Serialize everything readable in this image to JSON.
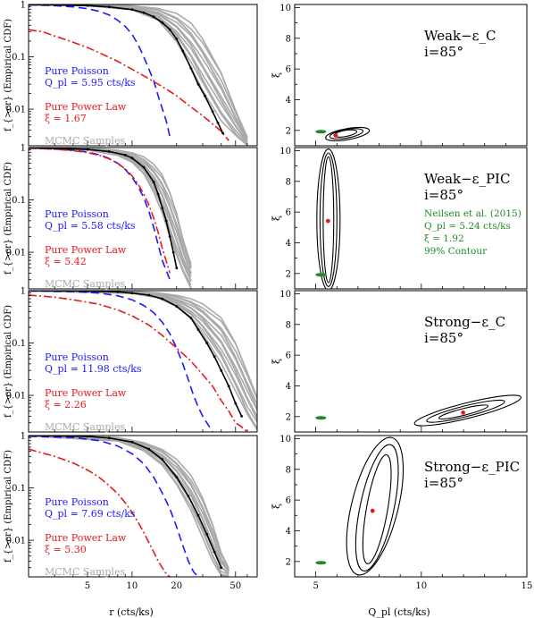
{
  "figure": {
    "left_ylabel": "f_{>cr} (Empirical CDF)",
    "left_xlabel": "r (cts/ks)",
    "right_ylabel": "ξ",
    "right_xlabel": "Q_pl (cts/ks)",
    "legend_labels": {
      "poisson": "Pure Poisson",
      "powerlaw": "Pure Power Law",
      "mcmc": "MCMC Samples"
    },
    "neilsen_text": [
      "Neilsen et al. (2015)",
      "Q_pl = 5.24 cts/ks",
      "ξ = 1.92",
      "99% Contour"
    ]
  },
  "colors": {
    "poisson": "#1a1aff",
    "powerlaw": "#e8191c",
    "mcmc": "#aaaaaa",
    "data": "#000000",
    "neilsen": "#1e8a2a"
  },
  "chart_data": [
    {
      "type": "line",
      "panel": "left-1",
      "scale": "log-log",
      "xlim": [
        2,
        70
      ],
      "ylim": [
        0.002,
        1
      ],
      "xticks": [
        5,
        10,
        20,
        50
      ],
      "yticks": [
        0.01,
        0.1,
        1
      ],
      "legend": {
        "poisson_label": "Pure Poisson",
        "q_label": "Q_pl = 5.95 cts/ks",
        "pl_label": "Pure Power Law",
        "xi_label": "ξ = 1.67",
        "mcmc_label": "MCMC Samples"
      },
      "series": [
        {
          "name": "Pure Poisson",
          "style": "dash",
          "x": [
            2,
            3,
            4,
            5,
            6,
            7,
            8,
            9,
            10,
            11,
            12,
            14,
            15,
            17,
            18
          ],
          "y": [
            0.98,
            0.95,
            0.9,
            0.83,
            0.74,
            0.63,
            0.5,
            0.38,
            0.27,
            0.17,
            0.1,
            0.035,
            0.018,
            0.006,
            0.003
          ]
        },
        {
          "name": "Pure Power Law",
          "style": "dashdot",
          "x": [
            2,
            2.5,
            3,
            4,
            5,
            6,
            8,
            10,
            13,
            16,
            20,
            25,
            30,
            35,
            40,
            45
          ],
          "y": [
            0.33,
            0.3,
            0.25,
            0.19,
            0.15,
            0.12,
            0.082,
            0.058,
            0.038,
            0.027,
            0.018,
            0.011,
            0.0075,
            0.0052,
            0.0038,
            0.0025
          ]
        },
        {
          "name": "Data",
          "style": "solid-points",
          "x": [
            2,
            3,
            5,
            7,
            10,
            12,
            14,
            16,
            18,
            20,
            22,
            25,
            28,
            31,
            35,
            38,
            41
          ],
          "y": [
            0.99,
            0.98,
            0.95,
            0.9,
            0.8,
            0.7,
            0.58,
            0.45,
            0.33,
            0.22,
            0.13,
            0.06,
            0.03,
            0.018,
            0.009,
            0.0055,
            0.0035
          ]
        }
      ],
      "mcmc_band": {
        "x": [
          2,
          5,
          10,
          15,
          20,
          25,
          30,
          40,
          50,
          60
        ],
        "lower": [
          0.99,
          0.95,
          0.78,
          0.5,
          0.2,
          0.07,
          0.025,
          0.006,
          0.003,
          0.002
        ],
        "upper": [
          1,
          0.99,
          0.95,
          0.85,
          0.65,
          0.4,
          0.2,
          0.05,
          0.01,
          0.003
        ]
      }
    },
    {
      "type": "line",
      "panel": "left-2",
      "scale": "log-log",
      "xlim": [
        2,
        70
      ],
      "ylim": [
        0.002,
        1
      ],
      "xticks": [
        5,
        10,
        20,
        50
      ],
      "yticks": [
        0.01,
        0.1,
        1
      ],
      "legend": {
        "poisson_label": "Pure Poisson",
        "q_label": "Q_pl = 5.58 cts/ks",
        "pl_label": "Pure Power Law",
        "xi_label": "ξ = 5.42",
        "mcmc_label": "MCMC Samples"
      },
      "series": [
        {
          "name": "Pure Poisson",
          "style": "dash",
          "x": [
            2,
            3,
            4,
            5,
            6,
            7,
            8,
            9,
            10,
            11,
            12,
            13,
            14,
            15,
            16,
            18
          ],
          "y": [
            0.98,
            0.94,
            0.89,
            0.82,
            0.73,
            0.62,
            0.5,
            0.38,
            0.27,
            0.18,
            0.11,
            0.06,
            0.03,
            0.014,
            0.007,
            0.003
          ]
        },
        {
          "name": "Pure Power Law",
          "style": "dashdot",
          "x": [
            2,
            3,
            4,
            5,
            6,
            7,
            8,
            9,
            10,
            11,
            12,
            13,
            14,
            15,
            16,
            18
          ],
          "y": [
            0.97,
            0.93,
            0.87,
            0.8,
            0.71,
            0.61,
            0.5,
            0.39,
            0.29,
            0.2,
            0.13,
            0.08,
            0.045,
            0.024,
            0.012,
            0.004
          ]
        },
        {
          "name": "Data",
          "style": "solid-points",
          "x": [
            2,
            3,
            5,
            7,
            9,
            10,
            12,
            14,
            15,
            16,
            17,
            18,
            19,
            20
          ],
          "y": [
            0.99,
            0.97,
            0.92,
            0.84,
            0.72,
            0.63,
            0.42,
            0.22,
            0.13,
            0.07,
            0.04,
            0.02,
            0.01,
            0.005
          ]
        }
      ],
      "mcmc_band": {
        "x": [
          2,
          5,
          8,
          10,
          12,
          14,
          16,
          18,
          20,
          22,
          25
        ],
        "lower": [
          0.98,
          0.9,
          0.7,
          0.52,
          0.32,
          0.15,
          0.06,
          0.02,
          0.008,
          0.004,
          0.002
        ],
        "upper": [
          1,
          0.98,
          0.9,
          0.8,
          0.65,
          0.45,
          0.28,
          0.14,
          0.06,
          0.02,
          0.006
        ]
      }
    },
    {
      "type": "line",
      "panel": "left-3",
      "scale": "log-log",
      "xlim": [
        2,
        70
      ],
      "ylim": [
        0.002,
        1
      ],
      "xticks": [
        5,
        10,
        20,
        50
      ],
      "yticks": [
        0.01,
        0.1,
        1
      ],
      "legend": {
        "poisson_label": "Pure Poisson",
        "q_label": "Q_pl = 11.98 cts/ks",
        "pl_label": "Pure Power Law",
        "xi_label": "ξ = 2.26",
        "mcmc_label": "MCMC Samples"
      },
      "series": [
        {
          "name": "Pure Poisson",
          "style": "dash",
          "x": [
            2,
            4,
            6,
            8,
            10,
            12,
            14,
            16,
            18,
            20,
            22,
            24,
            26,
            28,
            30,
            32,
            35
          ],
          "y": [
            0.99,
            0.96,
            0.9,
            0.8,
            0.67,
            0.52,
            0.38,
            0.25,
            0.15,
            0.08,
            0.04,
            0.02,
            0.01,
            0.006,
            0.004,
            0.003,
            0.002
          ]
        },
        {
          "name": "Pure Power Law",
          "style": "dashdot",
          "x": [
            2,
            3,
            4,
            6,
            8,
            10,
            13,
            16,
            20,
            25,
            30,
            35,
            40,
            45,
            50,
            55,
            60
          ],
          "y": [
            0.82,
            0.75,
            0.67,
            0.55,
            0.43,
            0.33,
            0.22,
            0.14,
            0.08,
            0.045,
            0.025,
            0.015,
            0.008,
            0.005,
            0.003,
            0.0025,
            0.002
          ]
        },
        {
          "name": "Data",
          "style": "solid-points",
          "x": [
            2,
            5,
            8,
            10,
            13,
            16,
            20,
            25,
            28,
            32,
            36,
            40,
            45,
            50,
            55
          ],
          "y": [
            1,
            0.98,
            0.95,
            0.9,
            0.82,
            0.7,
            0.5,
            0.3,
            0.18,
            0.1,
            0.055,
            0.03,
            0.015,
            0.007,
            0.004
          ]
        }
      ],
      "mcmc_band": {
        "x": [
          2,
          10,
          15,
          20,
          25,
          30,
          40,
          50,
          60,
          70
        ],
        "lower": [
          0.99,
          0.88,
          0.72,
          0.5,
          0.3,
          0.16,
          0.045,
          0.012,
          0.004,
          0.002
        ],
        "upper": [
          1,
          0.97,
          0.92,
          0.82,
          0.68,
          0.52,
          0.28,
          0.1,
          0.03,
          0.01
        ]
      }
    },
    {
      "type": "line",
      "panel": "left-4",
      "scale": "log-log",
      "xlim": [
        2,
        70
      ],
      "ylim": [
        0.002,
        1
      ],
      "xticks": [
        5,
        10,
        20,
        50
      ],
      "yticks": [
        0.01,
        0.1,
        1
      ],
      "legend": {
        "poisson_label": "Pure Poisson",
        "q_label": "Q_pl = 7.69 cts/ks",
        "pl_label": "Pure Power Law",
        "xi_label": "ξ = 5.30",
        "mcmc_label": "MCMC Samples"
      },
      "series": [
        {
          "name": "Pure Poisson",
          "style": "dash",
          "x": [
            2,
            4,
            6,
            8,
            10,
            12,
            14,
            16,
            18,
            20,
            22,
            24,
            26,
            28
          ],
          "y": [
            0.97,
            0.92,
            0.8,
            0.63,
            0.45,
            0.29,
            0.16,
            0.08,
            0.04,
            0.018,
            0.008,
            0.004,
            0.0025,
            0.002
          ]
        },
        {
          "name": "Pure Power Law",
          "style": "dashdot",
          "x": [
            2,
            3,
            4,
            5,
            6,
            7,
            8,
            9,
            10,
            11,
            12,
            13,
            14,
            15,
            16,
            17,
            18
          ],
          "y": [
            0.55,
            0.4,
            0.3,
            0.22,
            0.16,
            0.11,
            0.078,
            0.052,
            0.034,
            0.022,
            0.014,
            0.009,
            0.006,
            0.004,
            0.003,
            0.0023,
            0.002
          ]
        },
        {
          "name": "Data",
          "style": "solid-points",
          "x": [
            2,
            5,
            7,
            10,
            13,
            16,
            20,
            24,
            28,
            32,
            36,
            40
          ],
          "y": [
            1,
            0.96,
            0.9,
            0.75,
            0.55,
            0.35,
            0.16,
            0.07,
            0.03,
            0.013,
            0.006,
            0.003
          ]
        }
      ],
      "mcmc_band": {
        "x": [
          2,
          8,
          12,
          16,
          20,
          25,
          30,
          35,
          40,
          45
        ],
        "lower": [
          0.98,
          0.78,
          0.5,
          0.27,
          0.12,
          0.04,
          0.012,
          0.004,
          0.002,
          0.002
        ],
        "upper": [
          1,
          0.92,
          0.75,
          0.55,
          0.34,
          0.16,
          0.06,
          0.02,
          0.006,
          0.003
        ]
      }
    },
    {
      "type": "scatter",
      "panel": "right-1",
      "subtype": "contour",
      "title": "Weak−ε_C",
      "inclination": "i=85°",
      "xlim": [
        4,
        15
      ],
      "ylim": [
        1,
        10.2
      ],
      "xticks": [
        5,
        10,
        15
      ],
      "yticks": [
        2,
        4,
        6,
        8,
        10
      ],
      "best_fit": {
        "x": 5.95,
        "y": 1.67
      },
      "neilsen_point": {
        "x": 5.24,
        "y": 1.92
      },
      "contours": [
        {
          "cx": 6.4,
          "cy": 1.8,
          "rx": 0.55,
          "ry": 0.2,
          "angle": 10
        },
        {
          "cx": 6.45,
          "cy": 1.78,
          "rx": 0.8,
          "ry": 0.28,
          "angle": 10
        },
        {
          "cx": 6.5,
          "cy": 1.76,
          "rx": 1.05,
          "ry": 0.36,
          "angle": 10
        }
      ]
    },
    {
      "type": "scatter",
      "panel": "right-2",
      "subtype": "contour",
      "title": "Weak−ε_PIC",
      "inclination": "i=85°",
      "xlim": [
        4,
        15
      ],
      "ylim": [
        1,
        10.2
      ],
      "xticks": [
        5,
        10,
        15
      ],
      "yticks": [
        2,
        4,
        6,
        8,
        10
      ],
      "best_fit": {
        "x": 5.58,
        "y": 5.42
      },
      "neilsen_point": {
        "x": 5.24,
        "y": 1.92
      },
      "neilsen_label": true,
      "contours": [
        {
          "cx": 5.6,
          "cy": 5.5,
          "rx": 0.25,
          "ry": 4.1,
          "angle": 0
        },
        {
          "cx": 5.6,
          "cy": 5.5,
          "rx": 0.4,
          "ry": 4.35,
          "angle": 0
        },
        {
          "cx": 5.6,
          "cy": 5.5,
          "rx": 0.55,
          "ry": 4.6,
          "angle": 0
        }
      ]
    },
    {
      "type": "scatter",
      "panel": "right-3",
      "subtype": "contour",
      "title": "Strong−ε_C",
      "inclination": "i=85°",
      "xlim": [
        4,
        15
      ],
      "ylim": [
        1,
        10.2
      ],
      "xticks": [
        5,
        10,
        15
      ],
      "yticks": [
        2,
        4,
        6,
        8,
        10
      ],
      "best_fit": {
        "x": 11.98,
        "y": 2.26
      },
      "neilsen_point": {
        "x": 5.24,
        "y": 1.92
      },
      "contours": [
        {
          "cx": 12.0,
          "cy": 2.3,
          "rx": 1.2,
          "ry": 0.22,
          "angle": 14
        },
        {
          "cx": 12.1,
          "cy": 2.35,
          "rx": 1.9,
          "ry": 0.35,
          "angle": 14
        },
        {
          "cx": 12.2,
          "cy": 2.4,
          "rx": 2.6,
          "ry": 0.5,
          "angle": 14
        }
      ]
    },
    {
      "type": "scatter",
      "panel": "right-4",
      "subtype": "contour",
      "title": "Strong−ε_PIC",
      "inclination": "i=85°",
      "xlim": [
        4,
        15
      ],
      "ylim": [
        1,
        10.2
      ],
      "xticks": [
        5,
        10,
        15
      ],
      "yticks": [
        2,
        4,
        6,
        8,
        10
      ],
      "best_fit": {
        "x": 7.69,
        "y": 5.3
      },
      "neilsen_point": {
        "x": 5.24,
        "y": 1.92
      },
      "contours": [
        {
          "cx": 7.9,
          "cy": 5.4,
          "rx": 0.5,
          "ry": 3.6,
          "angle": -10
        },
        {
          "cx": 7.9,
          "cy": 5.5,
          "rx": 0.8,
          "ry": 4.2,
          "angle": -12
        },
        {
          "cx": 7.8,
          "cy": 5.6,
          "rx": 1.1,
          "ry": 4.6,
          "angle": -14
        }
      ]
    }
  ]
}
